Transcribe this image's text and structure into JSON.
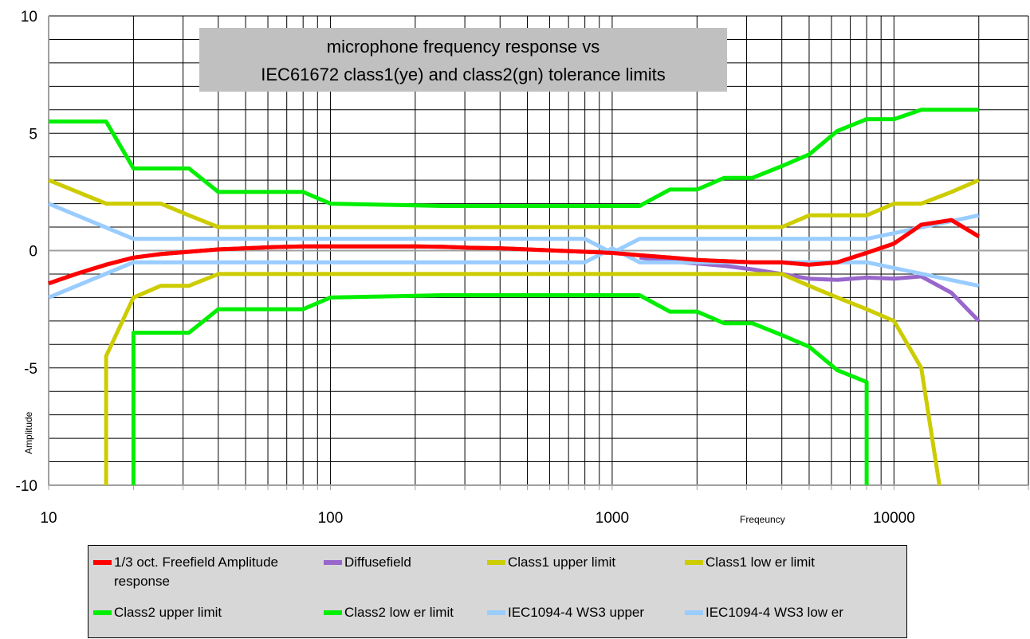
{
  "chart_data": {
    "type": "line",
    "title_lines": [
      "microphone frequency response vs",
      "IEC61672 class1(ye) and class2(gn) tolerance limits"
    ],
    "xlabel": "Freqeuncy",
    "ylabel": "Amplitude",
    "x_scale": "log",
    "xlim": [
      10,
      30000
    ],
    "ylim": [
      -10,
      10
    ],
    "x_ticks": [
      "10",
      "100",
      "1000",
      "10000"
    ],
    "y_ticks": [
      "10",
      "5",
      "0",
      "-5",
      "-10"
    ],
    "grid": true,
    "legend_position": "bottom",
    "series": [
      {
        "name": "1/3 oct. Freefield Amplitude response",
        "color": "#ff0000",
        "x": [
          10,
          12.5,
          16,
          20,
          25,
          31.5,
          40,
          50,
          63,
          80,
          100,
          125,
          160,
          200,
          250,
          315,
          400,
          500,
          630,
          800,
          1000,
          1250,
          1600,
          2000,
          2500,
          3150,
          4000,
          5000,
          6300,
          8000,
          10000,
          12500,
          16000,
          20000
        ],
        "y": [
          -1.4,
          -1.0,
          -0.6,
          -0.3,
          -0.15,
          -0.05,
          0.05,
          0.1,
          0.15,
          0.18,
          0.18,
          0.18,
          0.18,
          0.18,
          0.16,
          0.12,
          0.1,
          0.05,
          0.0,
          -0.05,
          -0.1,
          -0.2,
          -0.3,
          -0.4,
          -0.45,
          -0.5,
          -0.5,
          -0.6,
          -0.5,
          -0.1,
          0.3,
          1.1,
          1.3,
          0.6
        ]
      },
      {
        "name": "Diffusefield",
        "color": "#9966cc",
        "x": [
          1250,
          1600,
          2000,
          2500,
          3150,
          4000,
          5000,
          6300,
          8000,
          10000,
          12500,
          16000,
          20000
        ],
        "y": [
          -0.3,
          -0.45,
          -0.55,
          -0.65,
          -0.8,
          -1.0,
          -1.2,
          -1.25,
          -1.15,
          -1.2,
          -1.1,
          -1.8,
          -3.0
        ]
      },
      {
        "name": "Class1 upper limit",
        "color": "#cccc00",
        "x": [
          10,
          16,
          20,
          25,
          31.5,
          40,
          1000,
          4000,
          5000,
          6300,
          8000,
          10000,
          12500,
          16000,
          20000
        ],
        "y": [
          3.0,
          2.0,
          2.0,
          2.0,
          1.5,
          1.0,
          1.0,
          1.0,
          1.5,
          1.5,
          1.5,
          2.0,
          2.0,
          2.5,
          3.0
        ]
      },
      {
        "name": "Class1 lower limit",
        "color": "#cccc00",
        "x": [
          16,
          16,
          20,
          25,
          31.5,
          40,
          1000,
          4000,
          5000,
          6300,
          8000,
          10000,
          12500,
          14500
        ],
        "y": [
          -10,
          -4.5,
          -2.0,
          -1.5,
          -1.5,
          -1.0,
          -1.0,
          -1.0,
          -1.5,
          -2.0,
          -2.5,
          -3.0,
          -5.0,
          -10
        ]
      },
      {
        "name": "Class2 upper limit",
        "color": "#00ee00",
        "x": [
          10,
          16,
          20,
          31.5,
          40,
          80,
          100,
          250,
          1250,
          1600,
          2000,
          2500,
          3150,
          4000,
          5000,
          6300,
          8000,
          10000,
          12500,
          20000
        ],
        "y": [
          5.5,
          5.5,
          3.5,
          3.5,
          2.5,
          2.5,
          2.0,
          1.9,
          1.9,
          2.6,
          2.6,
          3.1,
          3.1,
          3.6,
          4.1,
          5.1,
          5.6,
          5.6,
          6.0,
          6.0
        ]
      },
      {
        "name": "Class2 lower limit",
        "color": "#00ee00",
        "x": [
          20,
          20,
          31.5,
          40,
          80,
          100,
          250,
          1250,
          1600,
          2000,
          2500,
          3150,
          4000,
          5000,
          6300,
          8000,
          8000
        ],
        "y": [
          -10,
          -3.5,
          -3.5,
          -2.5,
          -2.5,
          -2.0,
          -1.9,
          -1.9,
          -2.6,
          -2.6,
          -3.1,
          -3.1,
          -3.6,
          -4.1,
          -5.1,
          -5.6,
          -10
        ]
      },
      {
        "name": "IEC1094-4 WS3 upper",
        "color": "#99ccff",
        "x": [
          10,
          20,
          800,
          1000,
          1250,
          8000,
          20000
        ],
        "y": [
          2.0,
          0.5,
          0.5,
          -0.1,
          0.5,
          0.5,
          1.5
        ]
      },
      {
        "name": "IEC1094-4 WS3 lower",
        "color": "#99ccff",
        "x": [
          10,
          20,
          800,
          1000,
          1250,
          8000,
          20000
        ],
        "y": [
          -2.0,
          -0.5,
          -0.5,
          0.1,
          -0.5,
          -0.5,
          -1.5
        ]
      }
    ]
  },
  "legend": {
    "items": [
      {
        "label": "1/3 oct. Freefield Amplitude response",
        "color": "#ff0000"
      },
      {
        "label": "Diffusefield",
        "color": "#9966cc"
      },
      {
        "label": "Class1 upper limit",
        "color": "#cccc00"
      },
      {
        "label": "Class1 low er limit",
        "color": "#cccc00"
      },
      {
        "label": "Class2 upper limit",
        "color": "#00ee00"
      },
      {
        "label": "Class2 low er limit",
        "color": "#00ee00"
      },
      {
        "label": "IEC1094-4 WS3 upper",
        "color": "#99ccff"
      },
      {
        "label": "IEC1094-4 WS3 low er",
        "color": "#99ccff"
      }
    ]
  }
}
